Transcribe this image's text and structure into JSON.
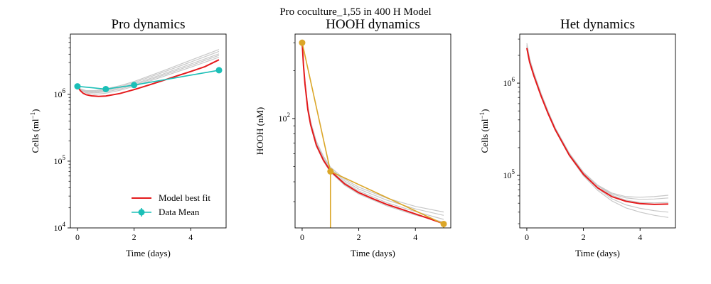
{
  "figure": {
    "suptitle": "Pro coculture_1,55 in 400 H Model"
  },
  "chart_data": [
    {
      "type": "line",
      "title": "Pro dynamics",
      "xlabel": "Time (days)",
      "ylabel": "Cells (ml$^{-1}$)",
      "ylabel_parts": {
        "base": "Cells (ml",
        "sup": "−1",
        "end": ")"
      },
      "yscale": "log",
      "xlim": [
        -0.25,
        5.25
      ],
      "ylim": [
        10000,
        8000000
      ],
      "x_ticks": [
        0,
        2,
        4
      ],
      "y_ticks": [
        {
          "value": 10000,
          "base": "10",
          "exp": "4"
        },
        {
          "value": 100000,
          "base": "10",
          "exp": "5"
        },
        {
          "value": 1000000,
          "base": "10",
          "exp": "6"
        }
      ],
      "legend": {
        "placement": "lower-right",
        "entries": [
          {
            "label": "Model best fit",
            "kind": "line",
            "color": "#e41a1c"
          },
          {
            "label": "Data Mean",
            "kind": "errorbar",
            "color": "#1bbfb7"
          }
        ]
      },
      "ensemble": {
        "color": "#c8c8c8",
        "curves": [
          {
            "t": [
              0,
              0.1,
              0.3,
              0.6,
              1,
              1.5,
              2,
              3,
              4,
              5
            ],
            "y": [
              1350000,
              1170000,
              1050000,
              1000000,
              1040000,
              1150000,
              1320000,
              1830000,
              2550000,
              3600000
            ]
          },
          {
            "t": [
              0,
              0.1,
              0.3,
              0.6,
              1,
              1.5,
              2,
              3,
              4,
              5
            ],
            "y": [
              1350000,
              1190000,
              1100000,
              1080000,
              1130000,
              1250000,
              1430000,
              2000000,
              2850000,
              4050000
            ]
          },
          {
            "t": [
              0,
              0.1,
              0.3,
              0.6,
              1,
              1.5,
              2,
              3,
              4,
              5
            ],
            "y": [
              1350000,
              1200000,
              1120000,
              1110000,
              1170000,
              1300000,
              1500000,
              2120000,
              3050000,
              4400000
            ]
          },
          {
            "t": [
              0,
              0.1,
              0.3,
              0.6,
              1,
              1.5,
              2,
              3,
              4,
              5
            ],
            "y": [
              1350000,
              1210000,
              1140000,
              1140000,
              1210000,
              1350000,
              1560000,
              2230000,
              3250000,
              4700000
            ]
          },
          {
            "t": [
              0,
              0.1,
              0.3,
              0.6,
              1,
              1.5,
              2,
              3,
              4,
              5
            ],
            "y": [
              1350000,
              1180000,
              1080000,
              1050000,
              1090000,
              1200000,
              1380000,
              1920000,
              2700000,
              3850000
            ]
          }
        ]
      },
      "series": [
        {
          "name": "Model best fit",
          "style": "line",
          "color": "#e41a1c",
          "x": [
            0,
            0.05,
            0.1,
            0.2,
            0.3,
            0.5,
            0.75,
            1,
            1.5,
            2,
            2.5,
            3,
            3.5,
            4,
            4.5,
            5
          ],
          "y": [
            1350000,
            1230000,
            1140000,
            1040000,
            990000,
            950000,
            935000,
            945000,
            1030000,
            1180000,
            1370000,
            1600000,
            1880000,
            2200000,
            2600000,
            3300000
          ]
        },
        {
          "name": "Data Mean",
          "style": "errorbar",
          "color": "#1bbfb7",
          "x": [
            0,
            1,
            2,
            5
          ],
          "y": [
            1320000,
            1200000,
            1380000,
            2300000
          ]
        }
      ]
    },
    {
      "type": "line",
      "title": "HOOH dynamics",
      "xlabel": "Time (days)",
      "ylabel": "HOOH (nM)",
      "yscale": "log",
      "xlim": [
        -0.25,
        5.25
      ],
      "ylim": [
        20.5,
        340
      ],
      "x_ticks": [
        0,
        2,
        4
      ],
      "y_ticks": [
        {
          "value": 100,
          "base": "10",
          "exp": "2"
        }
      ],
      "ensemble": {
        "color": "#c8c8c8",
        "curves": [
          {
            "t": [
              0,
              0.05,
              0.1,
              0.2,
              0.3,
              0.5,
              0.75,
              1,
              1.5,
              2,
              3,
              4,
              5
            ],
            "y": [
              300,
              220,
              172,
              120,
              96,
              72,
              58,
              49.5,
              41.5,
              37,
              31.5,
              28,
              25.8
            ]
          },
          {
            "t": [
              0,
              0.05,
              0.1,
              0.2,
              0.3,
              0.5,
              0.75,
              1,
              1.5,
              2,
              3,
              4,
              5
            ],
            "y": [
              300,
              215,
              168,
              116,
              93,
              69,
              55.5,
              47.5,
              39.5,
              35,
              29.5,
              26,
              23.2
            ]
          },
          {
            "t": [
              0,
              0.05,
              0.1,
              0.2,
              0.3,
              0.5,
              0.75,
              1,
              1.5,
              2,
              3,
              4,
              5
            ],
            "y": [
              300,
              212,
              165,
              113,
              90,
              67,
              54,
              46,
              38,
              33.5,
              28.2,
              24.7,
              22.3
            ]
          },
          {
            "t": [
              0,
              0.05,
              0.1,
              0.2,
              0.3,
              0.5,
              0.75,
              1,
              1.5,
              2,
              3,
              4,
              5
            ],
            "y": [
              300,
              218,
              170,
              118,
              94.5,
              70.5,
              57,
              48.5,
              40.5,
              36,
              30.6,
              27,
              24.6
            ]
          }
        ]
      },
      "series": [
        {
          "name": "",
          "style": "line",
          "color": "#e41a1c",
          "x": [
            0,
            0.05,
            0.1,
            0.2,
            0.3,
            0.5,
            0.75,
            1,
            1.5,
            2,
            2.5,
            3,
            3.5,
            4,
            4.5,
            5
          ],
          "y": [
            300,
            214,
            166,
            114.5,
            91.5,
            68,
            54.8,
            46.7,
            38.8,
            34.2,
            31.3,
            28.8,
            26.9,
            25.1,
            23.4,
            21.8
          ]
        },
        {
          "name": "",
          "style": "errorbar",
          "color": "#dba628",
          "x": [
            0,
            1,
            5
          ],
          "y": [
            300,
            46.5,
            21.7
          ],
          "err_low": [
            0,
            46.5,
            21.7
          ]
        }
      ]
    },
    {
      "type": "line",
      "title": "Het dynamics",
      "xlabel": "Time (days)",
      "ylabel": "Cells (ml$^{-1}$)",
      "ylabel_parts": {
        "base": "Cells (ml",
        "sup": "−1",
        "end": ")"
      },
      "yscale": "log",
      "xlim": [
        -0.25,
        5.25
      ],
      "ylim": [
        27000,
        3400000
      ],
      "x_ticks": [
        0,
        2,
        4
      ],
      "y_ticks": [
        {
          "value": 100000,
          "base": "10",
          "exp": "5"
        },
        {
          "value": 1000000,
          "base": "10",
          "exp": "6"
        }
      ],
      "ensemble": {
        "color": "#c8c8c8",
        "curves": [
          {
            "t": [
              0,
              0.1,
              0.25,
              0.5,
              0.75,
              1,
              1.5,
              2,
              2.5,
              3,
              3.5,
              4,
              4.5,
              5
            ],
            "y": [
              2700000,
              1850000,
              1300000,
              780000,
              500000,
              330000,
              175000,
              108000,
              77000,
              61000,
              54000,
              51000,
              50500,
              51000
            ]
          },
          {
            "t": [
              0,
              0.1,
              0.25,
              0.5,
              0.75,
              1,
              1.5,
              2,
              2.5,
              3,
              3.5,
              4,
              4.5,
              5
            ],
            "y": [
              2600000,
              1800000,
              1260000,
              760000,
              490000,
              325000,
              172000,
              107000,
              77500,
              63000,
              57000,
              55000,
              55500,
              57000
            ]
          },
          {
            "t": [
              0,
              0.1,
              0.25,
              0.5,
              0.75,
              1,
              1.5,
              2,
              2.5,
              3,
              3.5,
              4,
              4.5,
              5
            ],
            "y": [
              2500000,
              1750000,
              1230000,
              740000,
              475000,
              315000,
              166000,
              102000,
              72000,
              56000,
              48000,
              44000,
              41500,
              40000
            ]
          },
          {
            "t": [
              0,
              0.1,
              0.25,
              0.5,
              0.75,
              1,
              1.5,
              2,
              2.5,
              3,
              3.5,
              4,
              4.5,
              5
            ],
            "y": [
              2500000,
              1740000,
              1220000,
              730000,
              470000,
              310000,
              163000,
              99000,
              69000,
              53000,
              44500,
              40000,
              37000,
              35000
            ]
          },
          {
            "t": [
              0,
              0.1,
              0.25,
              0.5,
              0.75,
              1,
              1.5,
              2,
              2.5,
              3,
              3.5,
              4,
              4.5,
              5
            ],
            "y": [
              2600000,
              1820000,
              1280000,
              770000,
              495000,
              328000,
              174000,
              108500,
              78500,
              64500,
              59000,
              58000,
              59000,
              61000
            ]
          }
        ]
      },
      "series": [
        {
          "name": "",
          "style": "line",
          "color": "#e41a1c",
          "x": [
            0,
            0.1,
            0.25,
            0.5,
            0.75,
            1,
            1.5,
            2,
            2.5,
            3,
            3.5,
            4,
            4.5,
            5
          ],
          "y": [
            2400000,
            1690000,
            1200000,
            730000,
            470000,
            315000,
            166000,
            103000,
            73500,
            59000,
            52500,
            49500,
            48500,
            49000
          ]
        }
      ]
    }
  ]
}
